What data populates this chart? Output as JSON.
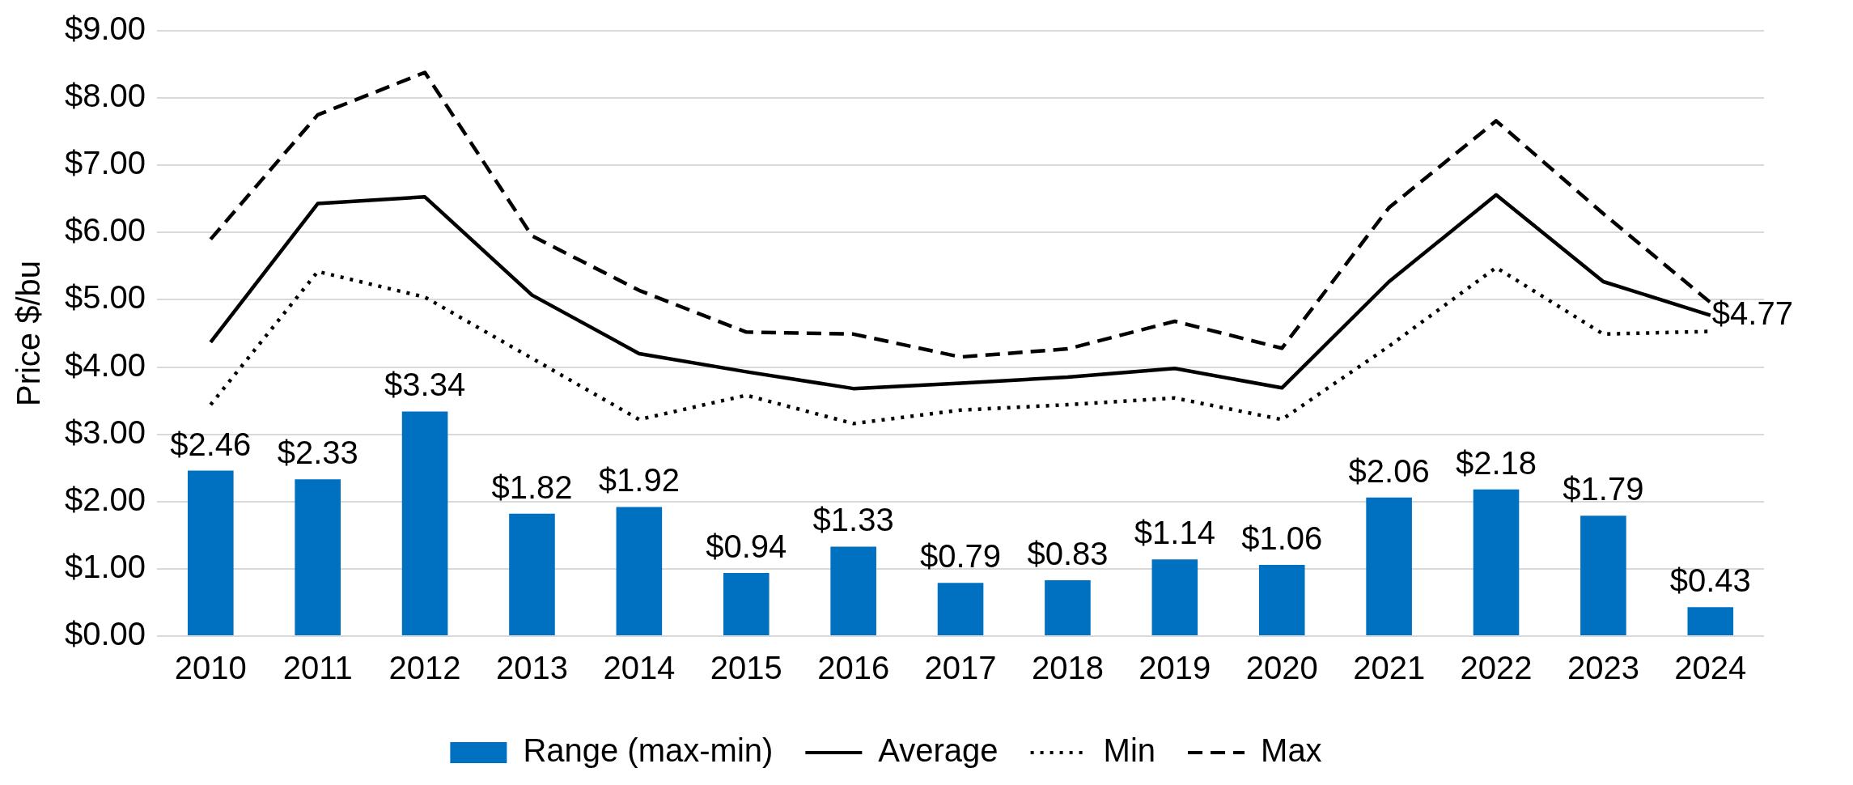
{
  "chart_data": {
    "type": "bar",
    "ylabel": "Price $/bu",
    "categories": [
      "2010",
      "2011",
      "2012",
      "2013",
      "2014",
      "2015",
      "2016",
      "2017",
      "2018",
      "2019",
      "2020",
      "2021",
      "2022",
      "2023",
      "2024"
    ],
    "series": [
      {
        "name": "Range (max-min)",
        "color": "#0070c0",
        "values": [
          2.46,
          2.33,
          3.34,
          1.82,
          1.92,
          0.94,
          1.33,
          0.79,
          0.83,
          1.14,
          1.06,
          2.06,
          2.18,
          1.79,
          0.43
        ],
        "value_labels": [
          "$2.46",
          "$2.33",
          "$3.34",
          "$1.82",
          "$1.92",
          "$0.94",
          "$1.33",
          "$0.79",
          "$0.83",
          "$1.14",
          "$1.06",
          "$2.06",
          "$2.18",
          "$1.79",
          "$0.43"
        ]
      },
      {
        "name": "Average",
        "type": "line",
        "color": "#000000",
        "line_style": "solid",
        "values": [
          4.37,
          6.43,
          6.53,
          5.07,
          4.2,
          3.93,
          3.68,
          3.76,
          3.85,
          3.98,
          3.69,
          5.27,
          6.56,
          5.27,
          4.77
        ],
        "value_labels": [
          null,
          null,
          null,
          null,
          null,
          null,
          null,
          null,
          null,
          null,
          null,
          null,
          null,
          null,
          "$4.77"
        ]
      },
      {
        "name": "Min",
        "type": "line",
        "color": "#000000",
        "line_style": "dotted",
        "values": [
          3.44,
          5.42,
          5.04,
          4.13,
          3.22,
          3.58,
          3.16,
          3.36,
          3.44,
          3.54,
          3.22,
          4.31,
          5.48,
          4.49,
          4.53
        ]
      },
      {
        "name": "Max",
        "type": "line",
        "color": "#000000",
        "line_style": "dashed",
        "values": [
          5.9,
          7.75,
          8.38,
          5.95,
          5.14,
          4.52,
          4.49,
          4.15,
          4.27,
          4.68,
          4.28,
          6.37,
          7.66,
          6.28,
          4.96
        ]
      }
    ],
    "ylim": [
      0,
      9
    ],
    "yticks": [
      {
        "value": 0,
        "label": "$0.00"
      },
      {
        "value": 1,
        "label": "$1.00"
      },
      {
        "value": 2,
        "label": "$2.00"
      },
      {
        "value": 3,
        "label": "$3.00"
      },
      {
        "value": 4,
        "label": "$4.00"
      },
      {
        "value": 5,
        "label": "$5.00"
      },
      {
        "value": 6,
        "label": "$6.00"
      },
      {
        "value": 7,
        "label": "$7.00"
      },
      {
        "value": 8,
        "label": "$8.00"
      },
      {
        "value": 9,
        "label": "$9.00"
      }
    ],
    "grid": "y",
    "legend": "bottom",
    "marker": "none"
  }
}
